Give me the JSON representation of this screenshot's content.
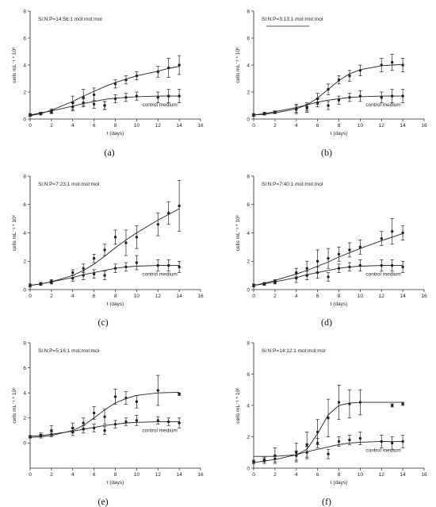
{
  "figure": {
    "background": "#ffffff",
    "ink": "#222222"
  },
  "chart_data": [
    {
      "type": "scatter",
      "panel_label": "(a)",
      "annotation": "Si:N:P=14:56:1 mol:mol:mol",
      "xlabel": "t (days)",
      "ylabel": "cells mL⁻¹ * 10⁶",
      "xlim": [
        0,
        16
      ],
      "ylim": [
        0,
        8
      ],
      "xticks": [
        0,
        2,
        4,
        6,
        8,
        10,
        12,
        14,
        16
      ],
      "yticks": [
        0,
        2,
        4,
        6,
        8
      ],
      "legend_text": "control medium",
      "series": [
        {
          "x": [
            0,
            1,
            2,
            4,
            5,
            6,
            7,
            8,
            9,
            10,
            12,
            13,
            14
          ],
          "y": [
            0.3,
            0.4,
            0.6,
            1.2,
            1.6,
            1.8,
            1.0,
            2.6,
            2.9,
            3.2,
            3.5,
            3.8,
            4.0
          ],
          "err": [
            0.1,
            0.1,
            0.15,
            0.5,
            0.6,
            0.5,
            0.3,
            0.3,
            0.3,
            0.3,
            0.4,
            0.7,
            0.7
          ],
          "fit": [
            0.25,
            0.4,
            0.65,
            1.3,
            1.7,
            2.05,
            2.4,
            2.7,
            2.95,
            3.2,
            3.55,
            3.75,
            3.9
          ]
        },
        {
          "x": [
            0,
            1,
            2,
            4,
            5,
            6,
            7,
            8,
            9,
            10,
            12,
            13,
            14
          ],
          "y": [
            0.3,
            0.4,
            0.5,
            0.9,
            1.2,
            1.1,
            1.0,
            1.5,
            1.6,
            1.7,
            1.6,
            1.7,
            1.7
          ],
          "err": [
            0.1,
            0.1,
            0.1,
            0.3,
            0.3,
            0.3,
            0.3,
            0.3,
            0.3,
            0.3,
            0.4,
            0.5,
            0.5
          ],
          "fit": [
            0.3,
            0.45,
            0.6,
            0.95,
            1.15,
            1.3,
            1.45,
            1.55,
            1.6,
            1.65,
            1.7,
            1.7,
            1.7
          ]
        }
      ]
    },
    {
      "type": "scatter",
      "panel_label": "(b)",
      "annotation": "Si:N:P=3:13:1 mol:mol:mol",
      "xlabel": "t (days)",
      "ylabel": "cells mL⁻¹ * 10⁶",
      "xlim": [
        0,
        16
      ],
      "ylim": [
        0,
        8
      ],
      "xticks": [
        0,
        2,
        4,
        6,
        8,
        10,
        12,
        14,
        16
      ],
      "yticks": [
        0,
        2,
        4,
        6,
        8
      ],
      "legend_text": "control medium",
      "series": [
        {
          "x": [
            0,
            1,
            2,
            4,
            5,
            6,
            7,
            8,
            9,
            10,
            12,
            13,
            14
          ],
          "y": [
            0.3,
            0.4,
            0.5,
            0.8,
            0.9,
            1.5,
            2.2,
            2.9,
            3.2,
            3.6,
            4.0,
            4.2,
            4.0
          ],
          "err": [
            0.1,
            0.1,
            0.1,
            0.3,
            0.3,
            0.4,
            0.4,
            0.3,
            0.4,
            0.4,
            0.5,
            0.6,
            0.5
          ],
          "fit": [
            0.3,
            0.35,
            0.45,
            0.75,
            1.05,
            1.55,
            2.2,
            2.85,
            3.35,
            3.65,
            3.95,
            4.0,
            4.05
          ]
        },
        {
          "x": [
            0,
            1,
            2,
            4,
            5,
            6,
            7,
            8,
            9,
            10,
            12,
            13,
            14
          ],
          "y": [
            0.3,
            0.4,
            0.5,
            0.7,
            0.8,
            1.2,
            1.0,
            1.4,
            1.6,
            1.7,
            1.6,
            1.7,
            1.7
          ],
          "err": [
            0.1,
            0.1,
            0.1,
            0.3,
            0.3,
            0.3,
            0.3,
            0.3,
            0.3,
            0.4,
            0.4,
            0.5,
            0.5
          ],
          "fit": [
            0.3,
            0.4,
            0.55,
            0.85,
            1.05,
            1.25,
            1.4,
            1.5,
            1.6,
            1.65,
            1.7,
            1.7,
            1.7
          ]
        }
      ]
    },
    {
      "type": "scatter",
      "panel_label": "(c)",
      "annotation": "Si:N:P=7:23:1 mol:mol:mol",
      "xlabel": "t (days)",
      "ylabel": "cells mL⁻¹ * 10⁶",
      "xlim": [
        0,
        16
      ],
      "ylim": [
        0,
        8
      ],
      "xticks": [
        0,
        2,
        4,
        6,
        8,
        10,
        12,
        14,
        16
      ],
      "yticks": [
        0,
        2,
        4,
        6,
        8
      ],
      "legend_text": "control medium",
      "series": [
        {
          "x": [
            0,
            1,
            2,
            4,
            5,
            6,
            7,
            8,
            9,
            10,
            12,
            13,
            14
          ],
          "y": [
            0.3,
            0.4,
            0.6,
            1.2,
            1.5,
            2.2,
            2.8,
            3.7,
            3.3,
            3.7,
            4.6,
            5.4,
            5.9
          ],
          "err": [
            0.1,
            0.1,
            0.1,
            0.2,
            0.3,
            0.3,
            0.4,
            0.5,
            0.9,
            0.8,
            0.8,
            0.8,
            1.8
          ],
          "fit": [
            0.3,
            0.4,
            0.55,
            1.0,
            1.35,
            1.8,
            2.35,
            2.95,
            3.5,
            4.0,
            4.9,
            5.3,
            5.7
          ]
        },
        {
          "x": [
            0,
            1,
            2,
            4,
            5,
            6,
            7,
            8,
            9,
            10,
            12,
            13,
            14
          ],
          "y": [
            0.3,
            0.4,
            0.5,
            0.8,
            1.0,
            1.1,
            1.0,
            1.5,
            1.6,
            1.9,
            1.7,
            1.7,
            1.6
          ],
          "err": [
            0.1,
            0.1,
            0.1,
            0.2,
            0.3,
            0.3,
            0.3,
            0.3,
            0.3,
            0.5,
            0.4,
            0.4,
            0.4
          ],
          "fit": [
            0.3,
            0.4,
            0.55,
            0.85,
            1.05,
            1.2,
            1.35,
            1.5,
            1.6,
            1.65,
            1.7,
            1.7,
            1.7
          ]
        }
      ]
    },
    {
      "type": "scatter",
      "panel_label": "(d)",
      "annotation": "Si:N:P=7:40:1 mol:mol:mol",
      "xlabel": "t (days)",
      "ylabel": "cells mL⁻¹ * 10⁶",
      "xlim": [
        0,
        16
      ],
      "ylim": [
        0,
        8
      ],
      "xticks": [
        0,
        2,
        4,
        6,
        8,
        10,
        12,
        14,
        16
      ],
      "yticks": [
        0,
        2,
        4,
        6,
        8
      ],
      "legend_text": "control medium",
      "series": [
        {
          "x": [
            0,
            1,
            2,
            4,
            5,
            6,
            7,
            8,
            9,
            10,
            12,
            13,
            14
          ],
          "y": [
            0.3,
            0.4,
            0.6,
            1.2,
            1.5,
            2.0,
            2.2,
            2.5,
            2.8,
            3.0,
            3.6,
            4.1,
            4.0
          ],
          "err": [
            0.1,
            0.1,
            0.1,
            0.3,
            0.5,
            0.8,
            0.7,
            0.5,
            0.5,
            0.5,
            0.5,
            0.9,
            0.5
          ],
          "fit": [
            0.3,
            0.45,
            0.65,
            1.1,
            1.35,
            1.65,
            1.95,
            2.3,
            2.6,
            2.9,
            3.45,
            3.7,
            3.95
          ]
        },
        {
          "x": [
            0,
            1,
            2,
            4,
            5,
            6,
            7,
            8,
            9,
            10,
            12,
            13,
            14
          ],
          "y": [
            0.3,
            0.4,
            0.5,
            0.8,
            1.0,
            1.2,
            0.9,
            1.5,
            1.6,
            1.7,
            1.7,
            1.7,
            1.6
          ],
          "err": [
            0.1,
            0.1,
            0.1,
            0.3,
            0.3,
            0.4,
            0.3,
            0.3,
            0.3,
            0.4,
            0.4,
            0.4,
            0.4
          ],
          "fit": [
            0.3,
            0.4,
            0.55,
            0.85,
            1.05,
            1.2,
            1.35,
            1.5,
            1.6,
            1.65,
            1.7,
            1.7,
            1.7
          ]
        }
      ]
    },
    {
      "type": "scatter",
      "panel_label": "(e)",
      "annotation": "Si:N:P=5:16:1 mol:mol:mol",
      "xlabel": "t (days)",
      "ylabel": "cells mL⁻¹ * 10⁶",
      "xlim": [
        0,
        16
      ],
      "ylim": [
        -2,
        8
      ],
      "xticks": [
        0,
        2,
        4,
        6,
        8,
        10,
        12,
        14,
        16
      ],
      "yticks": [
        0,
        2,
        4,
        6,
        8
      ],
      "legend_text": "control medium",
      "series": [
        {
          "x": [
            0,
            1,
            2,
            4,
            5,
            6,
            7,
            8,
            9,
            10,
            12,
            14
          ],
          "y": [
            0.5,
            0.6,
            1.0,
            1.2,
            1.6,
            2.4,
            2.1,
            3.7,
            3.6,
            3.3,
            4.2,
            3.9
          ],
          "err": [
            0.1,
            0.2,
            0.4,
            0.4,
            0.4,
            0.5,
            0.6,
            0.6,
            0.5,
            0.5,
            1.2,
            0.1
          ],
          "fit": [
            0.45,
            0.5,
            0.6,
            1.0,
            1.4,
            2.0,
            2.65,
            3.2,
            3.55,
            3.8,
            4.0,
            4.05
          ]
        },
        {
          "x": [
            0,
            1,
            2,
            4,
            5,
            6,
            7,
            8,
            9,
            10,
            12,
            13,
            14
          ],
          "y": [
            0.5,
            0.6,
            0.7,
            0.9,
            1.1,
            1.2,
            1.0,
            1.5,
            1.7,
            1.8,
            1.8,
            1.7,
            1.6
          ],
          "err": [
            0.1,
            0.1,
            0.2,
            0.3,
            0.3,
            0.3,
            0.3,
            0.3,
            0.3,
            0.4,
            0.3,
            0.3,
            0.4
          ],
          "fit": [
            0.55,
            0.6,
            0.7,
            0.95,
            1.1,
            1.25,
            1.4,
            1.5,
            1.6,
            1.65,
            1.7,
            1.7,
            1.7
          ]
        }
      ]
    },
    {
      "type": "scatter",
      "panel_label": "(f)",
      "annotation": "Si:N:P=14:12:1 mol:mol:mol",
      "xlabel": "t (days)",
      "ylabel": "cells mL⁻¹ * 10⁶",
      "xlim": [
        0,
        16
      ],
      "ylim": [
        0,
        8
      ],
      "xticks": [
        0,
        2,
        4,
        6,
        8,
        10,
        12,
        14,
        16
      ],
      "yticks": [
        0,
        2,
        4,
        6,
        8
      ],
      "legend_text": "control medium",
      "series": [
        {
          "x": [
            0,
            1,
            2,
            4,
            5,
            6,
            7,
            8,
            9,
            10,
            13,
            14
          ],
          "y": [
            0.4,
            0.5,
            0.8,
            1.0,
            1.5,
            2.3,
            3.2,
            4.2,
            4.1,
            4.2,
            4.0,
            4.1
          ],
          "err": [
            0.1,
            0.2,
            0.5,
            0.6,
            0.8,
            0.8,
            1.2,
            1.1,
            0.9,
            0.8,
            0.1,
            0.1
          ],
          "fit": [
            0.75,
            0.75,
            0.75,
            0.85,
            1.2,
            2.2,
            3.4,
            4.0,
            4.15,
            4.2,
            4.2,
            4.2
          ]
        },
        {
          "x": [
            0,
            1,
            2,
            4,
            5,
            6,
            7,
            8,
            9,
            10,
            12,
            13,
            14
          ],
          "y": [
            0.4,
            0.5,
            0.6,
            0.8,
            1.0,
            1.6,
            0.9,
            1.7,
            1.8,
            1.9,
            1.7,
            1.6,
            1.7
          ],
          "err": [
            0.1,
            0.1,
            0.2,
            0.3,
            0.4,
            0.3,
            0.3,
            0.3,
            0.3,
            0.4,
            0.4,
            0.4,
            0.4
          ],
          "fit": [
            0.35,
            0.45,
            0.55,
            0.85,
            1.05,
            1.2,
            1.35,
            1.5,
            1.6,
            1.65,
            1.7,
            1.7,
            1.7
          ]
        }
      ]
    }
  ]
}
